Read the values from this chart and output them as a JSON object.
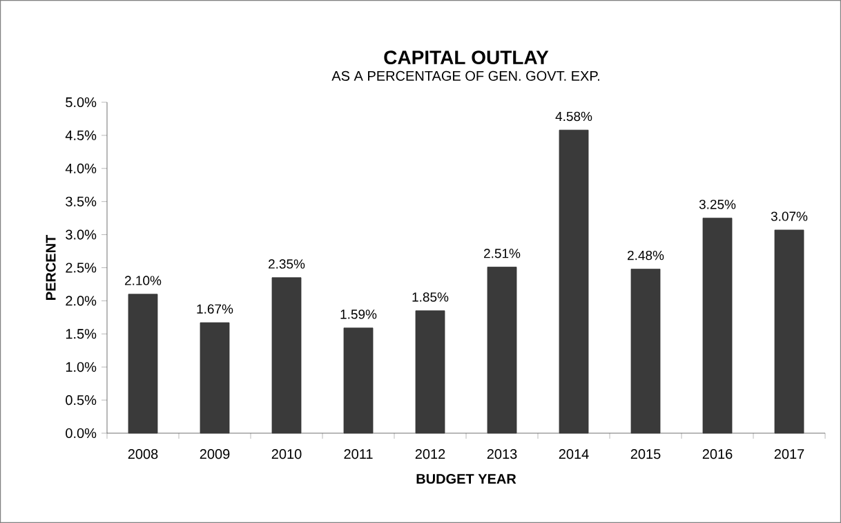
{
  "chart_data": {
    "type": "bar",
    "title": "CAPITAL OUTLAY",
    "subtitle": "AS A PERCENTAGE OF GEN. GOVT. EXP.",
    "xlabel": "BUDGET YEAR",
    "ylabel": "PERCENT",
    "categories": [
      "2008",
      "2009",
      "2010",
      "2011",
      "2012",
      "2013",
      "2014",
      "2015",
      "2016",
      "2017"
    ],
    "values": [
      2.1,
      1.67,
      2.35,
      1.59,
      1.85,
      2.51,
      4.58,
      2.48,
      3.25,
      3.07
    ],
    "value_labels": [
      "2.10%",
      "1.67%",
      "2.35%",
      "1.59%",
      "1.85%",
      "2.51%",
      "4.58%",
      "2.48%",
      "3.25%",
      "3.07%"
    ],
    "color": "#3a3a3a",
    "ylim": [
      0,
      5
    ],
    "yticks": [
      {
        "value": 0,
        "label": "0.0%"
      },
      {
        "value": 0.5,
        "label": "0.5%"
      },
      {
        "value": 1,
        "label": "1.0%"
      },
      {
        "value": 1.5,
        "label": "1.5%"
      },
      {
        "value": 2,
        "label": "2.0%"
      },
      {
        "value": 2.5,
        "label": "2.5%"
      },
      {
        "value": 3,
        "label": "3.0%"
      },
      {
        "value": 3.5,
        "label": "3.5%"
      },
      {
        "value": 4,
        "label": "4.0%"
      },
      {
        "value": 4.5,
        "label": "4.5%"
      },
      {
        "value": 5,
        "label": "5.0%"
      }
    ],
    "grid": false
  }
}
